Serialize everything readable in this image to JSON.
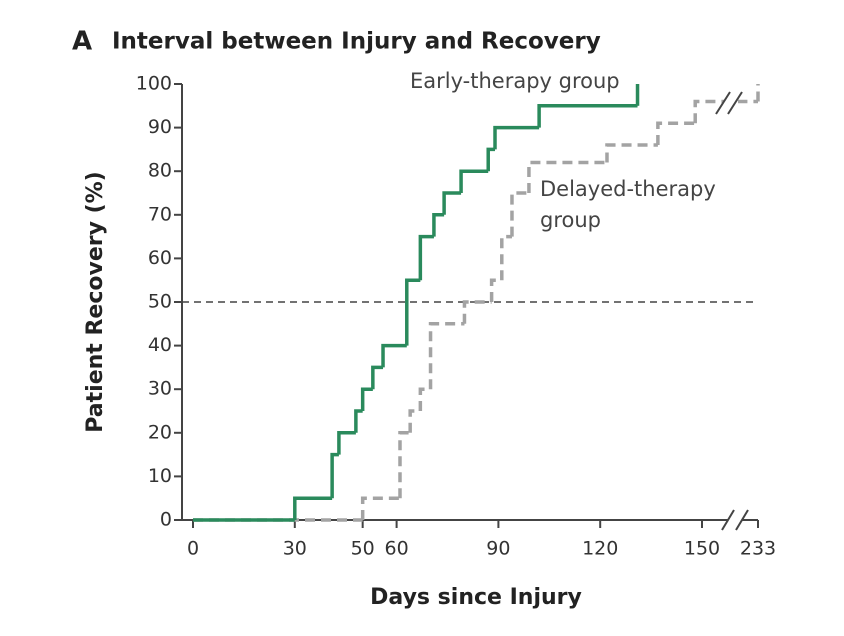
{
  "chart_data": {
    "type": "step",
    "panel": "A",
    "title": "Interval between Injury and Recovery",
    "x_label": "Days since Injury",
    "y_label": "Patient Recovery (%)",
    "xlim": [
      0,
      233
    ],
    "ylim": [
      0,
      100
    ],
    "xticks": [
      0,
      30,
      50,
      60,
      90,
      120,
      150,
      233
    ],
    "yticks": [
      0,
      10,
      20,
      30,
      40,
      50,
      60,
      70,
      80,
      90,
      100
    ],
    "x_axis_break": true,
    "reference_line": 50,
    "series": [
      {
        "name": "Early-therapy group",
        "color": "#2a8a5c",
        "dashed": false,
        "x": [
          0,
          30,
          41,
          43,
          48,
          50,
          53,
          56,
          63,
          67,
          71,
          74,
          79,
          87,
          89,
          102,
          131
        ],
        "values": [
          0,
          5,
          15,
          20,
          25,
          30,
          35,
          40,
          55,
          65,
          70,
          75,
          80,
          85,
          90,
          95,
          100
        ]
      },
      {
        "name": "Delayed-therapy group",
        "color": "#a3a3a3",
        "dashed": true,
        "x": [
          0,
          50,
          61,
          64,
          67,
          70,
          80,
          88,
          91,
          94,
          99,
          122,
          137,
          148,
          233
        ],
        "values": [
          0,
          5,
          20,
          25,
          30,
          45,
          50,
          55,
          65,
          75,
          82,
          86,
          91,
          96,
          100
        ]
      }
    ]
  }
}
